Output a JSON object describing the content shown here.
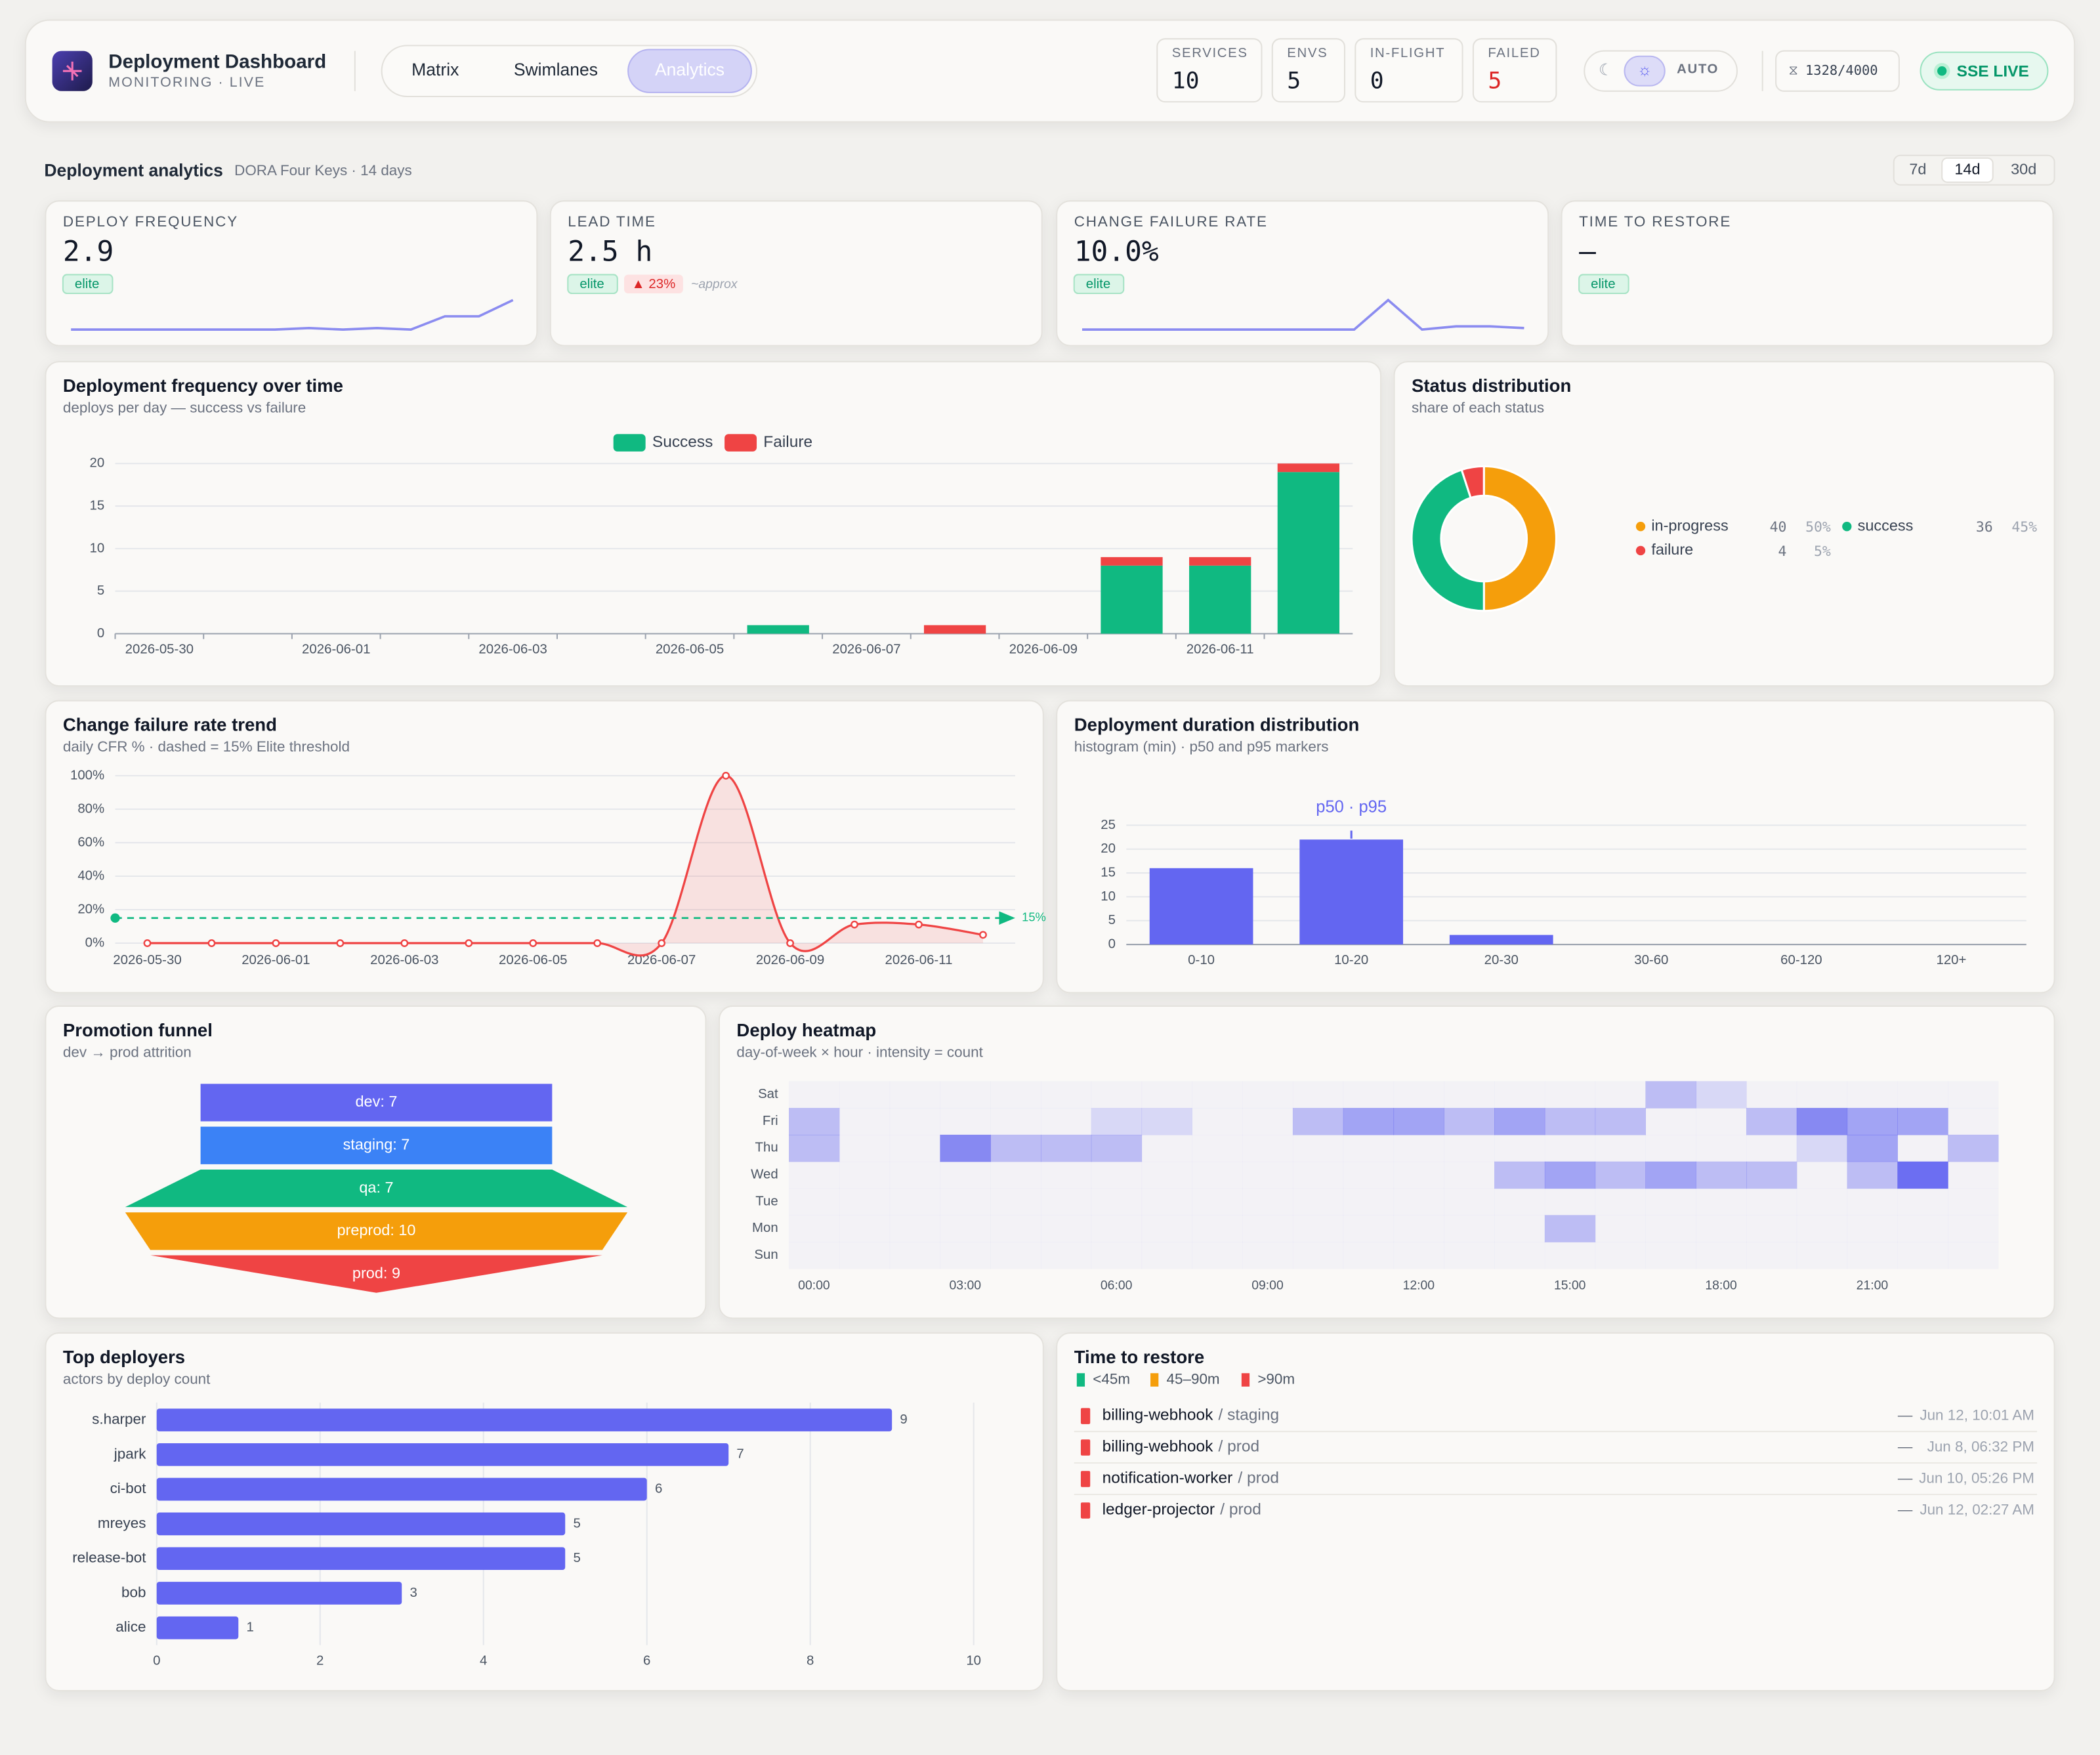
{
  "header": {
    "title": "Deployment Dashboard",
    "subtitle": "MONITORING · LIVE",
    "tabs": [
      "Matrix",
      "Swimlanes",
      "Analytics"
    ],
    "active_tab": 2,
    "stats": [
      {
        "label": "SERVICES",
        "value": 10
      },
      {
        "label": "ENVS",
        "value": 5
      },
      {
        "label": "IN-FLIGHT",
        "value": 0
      },
      {
        "label": "FAILED",
        "value": 5
      }
    ],
    "theme": "AUTO",
    "budget": "1328/4000",
    "live": "SSE LIVE"
  },
  "analytics": {
    "title": "Deployment analytics",
    "subtitle": "DORA Four Keys · 14 days",
    "ranges": [
      "7d",
      "14d",
      "30d"
    ],
    "active_range": 1
  },
  "kpis": [
    {
      "label": "DEPLOY FREQUENCY",
      "value": "2.9",
      "badge": "elite",
      "sparkline": [
        0,
        0,
        0,
        0,
        0,
        0,
        0,
        1,
        0,
        1,
        0,
        9,
        9,
        20
      ]
    },
    {
      "label": "LEAD TIME",
      "value": "2.5 h",
      "badge": "elite",
      "delta": "▲ 23%",
      "note": "~approx"
    },
    {
      "label": "CHANGE FAILURE RATE",
      "value": "10.0%",
      "badge": "elite",
      "sparkline": [
        0,
        0,
        0,
        0,
        0,
        0,
        0,
        0,
        0,
        100,
        0,
        11.1,
        11.1,
        5
      ]
    },
    {
      "label": "TIME TO RESTORE",
      "value": "—",
      "badge": "elite"
    }
  ],
  "chart_data": [
    {
      "type": "stacked_bar",
      "title": "Deployment frequency over time",
      "subtitle": "deploys per day — success vs failure",
      "categories": [
        "2026-05-30",
        null,
        "2026-06-01",
        null,
        "2026-06-03",
        null,
        "2026-06-05",
        null,
        "2026-06-07",
        null,
        "2026-06-09",
        null,
        "2026-06-11",
        null
      ],
      "series": [
        {
          "name": "Success",
          "color": "#10b981",
          "values": [
            0,
            0,
            0,
            0,
            0,
            0,
            0,
            1,
            0,
            0,
            0,
            8,
            8,
            19
          ]
        },
        {
          "name": "Failure",
          "color": "#ef4444",
          "values": [
            0,
            0,
            0,
            0,
            0,
            0,
            0,
            0,
            0,
            1,
            0,
            1,
            1,
            1
          ]
        }
      ],
      "ylim": [
        0,
        20
      ],
      "yticks": [
        0,
        5,
        10,
        15,
        20
      ],
      "grid": true,
      "legend": "top"
    },
    {
      "type": "donut",
      "title": "Status distribution",
      "subtitle": "share of each status",
      "categories": [
        "in-progress",
        "success",
        "failure"
      ],
      "values": [
        40,
        36,
        4
      ],
      "colors": [
        "#f59e0b",
        "#10b981",
        "#ef4444"
      ],
      "share_labels": [
        "50%",
        "45%",
        "5%"
      ]
    },
    {
      "type": "line",
      "title": "Change failure rate trend",
      "subtitle": "daily CFR % · dashed = 15% Elite threshold",
      "categories": [
        "2026-05-30",
        null,
        "2026-06-01",
        null,
        "2026-06-03",
        null,
        "2026-06-05",
        null,
        "2026-06-07",
        null,
        "2026-06-09",
        null,
        "2026-06-11",
        null
      ],
      "values": [
        0,
        0,
        0,
        0,
        0,
        0,
        0,
        0,
        0,
        100,
        0,
        11.1,
        11.1,
        5
      ],
      "color": "#ef4444",
      "smooth": true,
      "area": true,
      "threshold": 15,
      "threshold_color": "#10b981",
      "threshold_label": "15%",
      "ylim": [
        0,
        100
      ],
      "yticks": [
        {
          "value": 0,
          "label": "0%"
        },
        {
          "value": 20,
          "label": "20%"
        },
        {
          "value": 40,
          "label": "40%"
        },
        {
          "value": 60,
          "label": "60%"
        },
        {
          "value": 80,
          "label": "80%"
        },
        {
          "value": 100,
          "label": "100%"
        }
      ],
      "grid": true
    },
    {
      "type": "bar",
      "title": "Deployment duration distribution",
      "subtitle": "histogram (min) · p50 and p95 markers",
      "categories": [
        "0-10",
        "10-20",
        "20-30",
        "30-60",
        "60-120",
        "120+"
      ],
      "values": [
        16,
        22,
        2,
        0,
        0,
        0
      ],
      "color": "#6366f1",
      "marker_label": "p50 · p95",
      "marker_category": 1,
      "ylim": [
        0,
        25
      ],
      "yticks": [
        0,
        5,
        10,
        15,
        20,
        25
      ],
      "grid": true
    },
    {
      "type": "funnel",
      "title": "Promotion funnel",
      "subtitle": "dev → prod attrition",
      "categories": [
        "dev",
        "staging",
        "qa",
        "preprod",
        "prod"
      ],
      "values": [
        7,
        7,
        7,
        10,
        9
      ],
      "value_labels": [
        "dev: 7",
        "staging: 7",
        "qa: 7",
        "preprod: 10",
        "prod: 9"
      ],
      "colors": [
        "#6366f1",
        "#3b82f6",
        "#10b981",
        "#f59e0b",
        "#ef4444"
      ]
    },
    {
      "type": "heatmap",
      "title": "Deploy heatmap",
      "subtitle": "day-of-week × hour · intensity = count",
      "x": [
        "00:00",
        null,
        null,
        "03:00",
        null,
        null,
        "06:00",
        null,
        null,
        "09:00",
        null,
        null,
        "12:00",
        null,
        null,
        "15:00",
        null,
        null,
        "18:00",
        null,
        null,
        "21:00",
        null,
        null
      ],
      "y": [
        "Sun",
        "Mon",
        "Tue",
        "Wed",
        "Thu",
        "Fri",
        "Sat"
      ],
      "color": "#6366f1",
      "values": [
        [
          0,
          0,
          0,
          0,
          0,
          0,
          0,
          0,
          0,
          0,
          0,
          0,
          0,
          0,
          0,
          0,
          0,
          0,
          0,
          0,
          0,
          0,
          0,
          0
        ],
        [
          0,
          0,
          0,
          0,
          0,
          0,
          0,
          0,
          0,
          0,
          0,
          0,
          0,
          0,
          0,
          2,
          0,
          0,
          0,
          0,
          0,
          0,
          0,
          0
        ],
        [
          0,
          0,
          0,
          0,
          0,
          0,
          0,
          0,
          0,
          0,
          0,
          0,
          0,
          0,
          0,
          0,
          0,
          0,
          0,
          0,
          0,
          0,
          0,
          0
        ],
        [
          0,
          0,
          0,
          0,
          0,
          0,
          0,
          0,
          0,
          0,
          0,
          0,
          0,
          0,
          2,
          3,
          2,
          3,
          2,
          2,
          0,
          2,
          5,
          0
        ],
        [
          2,
          0,
          0,
          4,
          2,
          2,
          2,
          0,
          0,
          0,
          0,
          0,
          0,
          0,
          0,
          0,
          0,
          0,
          0,
          0,
          1,
          3,
          0,
          2
        ],
        [
          2,
          0,
          0,
          0,
          0,
          0,
          1,
          1,
          0,
          0,
          2,
          3,
          3,
          2,
          3,
          2,
          2,
          0,
          0,
          2,
          4,
          3,
          3,
          0
        ],
        [
          0,
          0,
          0,
          0,
          0,
          0,
          0,
          0,
          0,
          0,
          0,
          0,
          0,
          0,
          0,
          0,
          0,
          2,
          1,
          0,
          0,
          0,
          0,
          0
        ]
      ]
    },
    {
      "type": "hbar",
      "title": "Top deployers",
      "subtitle": "actors by deploy count",
      "categories": [
        "s.harper",
        "jpark",
        "ci-bot",
        "mreyes",
        "release-bot",
        "bob",
        "alice"
      ],
      "values": [
        9,
        7,
        6,
        5,
        5,
        3,
        1
      ],
      "color": "#6366f1",
      "xlim": [
        0,
        10
      ],
      "xticks": [
        0,
        2,
        4,
        6,
        8,
        10
      ],
      "grid": true
    }
  ],
  "restore": {
    "title": "Time to restore",
    "legend": [
      {
        "name": "<45m",
        "color": "#10b981"
      },
      {
        "name": "45–90m",
        "color": "#f59e0b"
      },
      {
        "name": ">90m",
        "color": "#ef4444"
      }
    ],
    "items": [
      {
        "service": "billing-webhook",
        "env": "/ staging",
        "duration": "—",
        "time": "Jun 12, 10:01 AM",
        "bucket": 2
      },
      {
        "service": "billing-webhook",
        "env": "/ prod",
        "duration": "—",
        "time": "Jun 8, 06:32 PM",
        "bucket": 2
      },
      {
        "service": "notification-worker",
        "env": "/ prod",
        "duration": "—",
        "time": "Jun 10, 05:26 PM",
        "bucket": 2
      },
      {
        "service": "ledger-projector",
        "env": "/ prod",
        "duration": "—",
        "time": "Jun 12, 02:27 AM",
        "bucket": 2
      }
    ]
  }
}
